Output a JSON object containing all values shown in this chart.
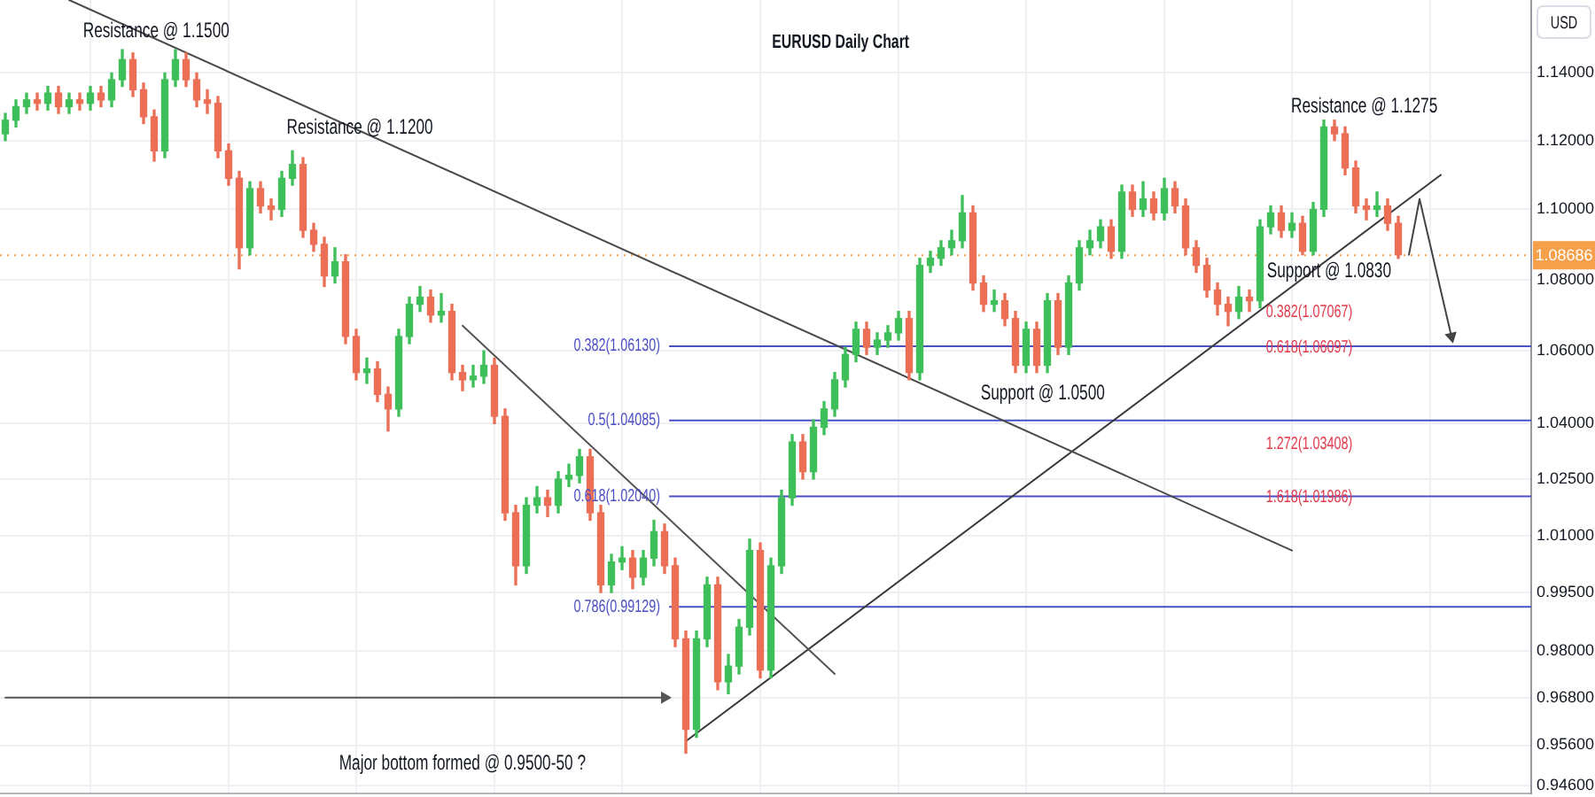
{
  "chart_data": {
    "type": "candlestick",
    "title": "EURUSD Daily Chart",
    "ylabel": "USD",
    "categories": [
      null,
      null,
      null,
      null,
      null,
      null,
      null,
      null,
      null,
      null,
      null,
      null,
      null,
      null,
      null,
      null,
      null,
      null,
      null,
      null,
      null,
      null,
      null,
      null,
      null,
      null,
      null,
      null,
      null,
      null,
      null,
      null,
      null,
      null,
      null,
      null,
      null,
      null,
      null,
      null,
      null,
      null,
      null,
      null,
      null,
      null,
      null,
      null,
      null,
      null,
      null,
      null,
      null,
      null,
      null,
      null,
      null,
      null,
      null,
      null,
      null,
      null,
      null,
      null,
      null,
      null,
      null,
      null,
      null,
      null,
      null,
      null,
      null,
      null,
      null,
      null,
      null,
      null,
      null,
      null,
      null,
      null,
      null,
      null,
      null,
      null,
      null,
      null,
      null,
      null,
      null,
      null,
      null,
      null,
      null,
      null,
      null,
      null,
      null,
      null,
      null,
      null,
      null,
      null,
      null,
      null,
      null,
      null,
      null,
      null,
      null,
      null,
      null,
      null,
      null,
      null,
      null,
      null,
      null,
      null,
      null,
      null,
      null,
      null,
      null,
      null,
      null,
      null,
      null,
      null,
      null,
      null,
      null,
      null,
      null,
      null,
      null,
      null,
      null,
      null,
      null,
      null,
      null,
      null
    ],
    "ohlc": [
      [
        1.122,
        1.128,
        1.12,
        1.126
      ],
      [
        1.126,
        1.132,
        1.124,
        1.13
      ],
      [
        1.13,
        1.134,
        1.128,
        1.132
      ],
      [
        1.132,
        1.134,
        1.129,
        1.131
      ],
      [
        1.131,
        1.136,
        1.129,
        1.134
      ],
      [
        1.134,
        1.136,
        1.128,
        1.13
      ],
      [
        1.13,
        1.134,
        1.128,
        1.132
      ],
      [
        1.132,
        1.134,
        1.129,
        1.131
      ],
      [
        1.131,
        1.136,
        1.129,
        1.134
      ],
      [
        1.134,
        1.136,
        1.13,
        1.132
      ],
      [
        1.132,
        1.14,
        1.13,
        1.138
      ],
      [
        1.138,
        1.147,
        1.136,
        1.144
      ],
      [
        1.144,
        1.146,
        1.133,
        1.135
      ],
      [
        1.135,
        1.137,
        1.125,
        1.127
      ],
      [
        1.127,
        1.129,
        1.114,
        1.117
      ],
      [
        1.117,
        1.14,
        1.115,
        1.138
      ],
      [
        1.138,
        1.147,
        1.136,
        1.144
      ],
      [
        1.144,
        1.146,
        1.136,
        1.138
      ],
      [
        1.138,
        1.14,
        1.13,
        1.132
      ],
      [
        1.132,
        1.135,
        1.128,
        1.131
      ],
      [
        1.131,
        1.133,
        1.115,
        1.117
      ],
      [
        1.117,
        1.119,
        1.107,
        1.109
      ],
      [
        1.109,
        1.111,
        1.083,
        1.089
      ],
      [
        1.089,
        1.108,
        1.087,
        1.106
      ],
      [
        1.106,
        1.108,
        1.099,
        1.101
      ],
      [
        1.101,
        1.103,
        1.097,
        1.1
      ],
      [
        1.1,
        1.111,
        1.098,
        1.109
      ],
      [
        1.109,
        1.117,
        1.107,
        1.113
      ],
      [
        1.113,
        1.115,
        1.092,
        1.094
      ],
      [
        1.094,
        1.096,
        1.088,
        1.09
      ],
      [
        1.09,
        1.092,
        1.078,
        1.081
      ],
      [
        1.081,
        1.089,
        1.079,
        1.085
      ],
      [
        1.085,
        1.087,
        1.062,
        1.064
      ],
      [
        1.064,
        1.066,
        1.052,
        1.054
      ],
      [
        1.054,
        1.058,
        1.051,
        1.055
      ],
      [
        1.055,
        1.057,
        1.046,
        1.048
      ],
      [
        1.048,
        1.05,
        1.038,
        1.044
      ],
      [
        1.044,
        1.066,
        1.042,
        1.064
      ],
      [
        1.064,
        1.075,
        1.062,
        1.073
      ],
      [
        1.073,
        1.078,
        1.071,
        1.075
      ],
      [
        1.075,
        1.077,
        1.068,
        1.07
      ],
      [
        1.07,
        1.076,
        1.068,
        1.071
      ],
      [
        1.071,
        1.073,
        1.052,
        1.054
      ],
      [
        1.054,
        1.056,
        1.049,
        1.052
      ],
      [
        1.052,
        1.056,
        1.05,
        1.053
      ],
      [
        1.053,
        1.06,
        1.051,
        1.056
      ],
      [
        1.056,
        1.058,
        1.04,
        1.042
      ],
      [
        1.042,
        1.044,
        1.014,
        1.016
      ],
      [
        1.016,
        1.018,
        0.997,
        1.002
      ],
      [
        1.002,
        1.02,
        1.0,
        1.018
      ],
      [
        1.018,
        1.023,
        1.016,
        1.02
      ],
      [
        1.02,
        1.022,
        1.015,
        1.018
      ],
      [
        1.018,
        1.027,
        1.016,
        1.025
      ],
      [
        1.025,
        1.029,
        1.023,
        1.026
      ],
      [
        1.026,
        1.033,
        1.024,
        1.031
      ],
      [
        1.031,
        1.033,
        1.014,
        1.016
      ],
      [
        1.016,
        1.018,
        0.995,
        0.997
      ],
      [
        0.997,
        1.005,
        0.995,
        1.003
      ],
      [
        1.003,
        1.007,
        1.001,
        1.004
      ],
      [
        1.004,
        1.006,
        0.996,
        0.999
      ],
      [
        0.999,
        1.006,
        0.997,
        1.004
      ],
      [
        1.004,
        1.014,
        1.002,
        1.011
      ],
      [
        1.011,
        1.013,
        1.0,
        1.002
      ],
      [
        1.002,
        1.004,
        0.981,
        0.983
      ],
      [
        0.983,
        0.985,
        0.954,
        0.96
      ],
      [
        0.96,
        0.985,
        0.958,
        0.983
      ],
      [
        0.983,
        0.999,
        0.981,
        0.997
      ],
      [
        0.997,
        0.999,
        0.97,
        0.972
      ],
      [
        0.972,
        0.979,
        0.969,
        0.976
      ],
      [
        0.976,
        0.988,
        0.974,
        0.986
      ],
      [
        0.986,
        1.009,
        0.984,
        1.006
      ],
      [
        1.006,
        1.008,
        0.973,
        0.975
      ],
      [
        0.975,
        1.004,
        0.973,
        1.002
      ],
      [
        1.002,
        1.022,
        1.0,
        1.02
      ],
      [
        1.02,
        1.037,
        1.018,
        1.035
      ],
      [
        1.035,
        1.037,
        1.025,
        1.027
      ],
      [
        1.027,
        1.041,
        1.025,
        1.039
      ],
      [
        1.039,
        1.046,
        1.037,
        1.044
      ],
      [
        1.044,
        1.054,
        1.042,
        1.052
      ],
      [
        1.052,
        1.061,
        1.05,
        1.059
      ],
      [
        1.059,
        1.068,
        1.057,
        1.066
      ],
      [
        1.066,
        1.068,
        1.059,
        1.061
      ],
      [
        1.061,
        1.065,
        1.059,
        1.063
      ],
      [
        1.063,
        1.067,
        1.061,
        1.065
      ],
      [
        1.065,
        1.071,
        1.063,
        1.069
      ],
      [
        1.069,
        1.071,
        1.052,
        1.054
      ],
      [
        1.054,
        1.086,
        1.052,
        1.084
      ],
      [
        1.084,
        1.088,
        1.082,
        1.086
      ],
      [
        1.086,
        1.091,
        1.084,
        1.089
      ],
      [
        1.089,
        1.094,
        1.087,
        1.091
      ],
      [
        1.091,
        1.104,
        1.089,
        1.099
      ],
      [
        1.099,
        1.101,
        1.077,
        1.079
      ],
      [
        1.079,
        1.081,
        1.071,
        1.073
      ],
      [
        1.073,
        1.077,
        1.071,
        1.074
      ],
      [
        1.074,
        1.076,
        1.067,
        1.069
      ],
      [
        1.069,
        1.071,
        1.054,
        1.056
      ],
      [
        1.056,
        1.068,
        1.054,
        1.066
      ],
      [
        1.066,
        1.068,
        1.054,
        1.056
      ],
      [
        1.056,
        1.076,
        1.054,
        1.074
      ],
      [
        1.074,
        1.076,
        1.059,
        1.061
      ],
      [
        1.061,
        1.081,
        1.059,
        1.079
      ],
      [
        1.079,
        1.091,
        1.077,
        1.089
      ],
      [
        1.089,
        1.094,
        1.087,
        1.091
      ],
      [
        1.091,
        1.097,
        1.089,
        1.095
      ],
      [
        1.095,
        1.097,
        1.086,
        1.088
      ],
      [
        1.088,
        1.107,
        1.086,
        1.105
      ],
      [
        1.105,
        1.107,
        1.098,
        1.1
      ],
      [
        1.1,
        1.108,
        1.098,
        1.103
      ],
      [
        1.103,
        1.105,
        1.097,
        1.099
      ],
      [
        1.099,
        1.109,
        1.097,
        1.106
      ],
      [
        1.106,
        1.108,
        1.099,
        1.101
      ],
      [
        1.101,
        1.103,
        1.087,
        1.089
      ],
      [
        1.089,
        1.091,
        1.082,
        1.084
      ],
      [
        1.084,
        1.086,
        1.075,
        1.077
      ],
      [
        1.077,
        1.079,
        1.07,
        1.073
      ],
      [
        1.073,
        1.075,
        1.067,
        1.071
      ],
      [
        1.071,
        1.078,
        1.069,
        1.075
      ],
      [
        1.075,
        1.077,
        1.071,
        1.074
      ],
      [
        1.074,
        1.097,
        1.072,
        1.095
      ],
      [
        1.095,
        1.101,
        1.093,
        1.099
      ],
      [
        1.099,
        1.101,
        1.092,
        1.094
      ],
      [
        1.094,
        1.099,
        1.092,
        1.096
      ],
      [
        1.096,
        1.098,
        1.087,
        1.088
      ],
      [
        1.088,
        1.102,
        1.087,
        1.1
      ],
      [
        1.1,
        1.126,
        1.098,
        1.124
      ],
      [
        1.124,
        1.126,
        1.12,
        1.122
      ],
      [
        1.122,
        1.124,
        1.11,
        1.112
      ],
      [
        1.112,
        1.114,
        1.099,
        1.101
      ],
      [
        1.101,
        1.103,
        1.097,
        1.1
      ],
      [
        1.1,
        1.105,
        1.098,
        1.101
      ],
      [
        1.101,
        1.103,
        1.094,
        1.096
      ],
      [
        1.096,
        1.098,
        1.086,
        1.087
      ],
      null,
      null,
      null,
      null,
      null,
      null,
      null,
      null,
      null,
      null,
      null,
      null
    ],
    "colors": [
      "#3fbf5a",
      "#3fbf5a",
      "#3fbf5a",
      "#ea6f56",
      "#3fbf5a",
      "#ea6f56",
      "#3fbf5a",
      "#ea6f56",
      "#3fbf5a",
      "#ea6f56",
      "#3fbf5a",
      "#3fbf5a",
      "#ea6f56",
      "#ea6f56",
      "#ea6f56",
      "#3fbf5a",
      "#3fbf5a",
      "#ea6f56",
      "#ea6f56",
      "#ea6f56",
      "#ea6f56",
      "#ea6f56",
      "#ea6f56",
      "#3fbf5a",
      "#ea6f56",
      "#ea6f56",
      "#3fbf5a",
      "#3fbf5a",
      "#ea6f56",
      "#ea6f56",
      "#ea6f56",
      "#3fbf5a",
      "#ea6f56",
      "#ea6f56",
      "#3fbf5a",
      "#ea6f56",
      "#ea6f56",
      "#3fbf5a",
      "#3fbf5a",
      "#3fbf5a",
      "#ea6f56",
      "#3fbf5a",
      "#ea6f56",
      "#ea6f56",
      "#3fbf5a",
      "#3fbf5a",
      "#ea6f56",
      "#ea6f56",
      "#ea6f56",
      "#3fbf5a",
      "#3fbf5a",
      "#ea6f56",
      "#3fbf5a",
      "#3fbf5a",
      "#3fbf5a",
      "#ea6f56",
      "#ea6f56",
      "#3fbf5a",
      "#3fbf5a",
      "#ea6f56",
      "#3fbf5a",
      "#3fbf5a",
      "#ea6f56",
      "#ea6f56",
      "#ea6f56",
      "#3fbf5a",
      "#3fbf5a",
      "#ea6f56",
      "#3fbf5a",
      "#3fbf5a",
      "#3fbf5a",
      "#ea6f56",
      "#3fbf5a",
      "#3fbf5a",
      "#3fbf5a",
      "#ea6f56",
      "#3fbf5a",
      "#3fbf5a",
      "#3fbf5a",
      "#3fbf5a",
      "#3fbf5a",
      "#ea6f56",
      "#3fbf5a",
      "#3fbf5a",
      "#3fbf5a",
      "#ea6f56",
      "#3fbf5a",
      "#3fbf5a",
      "#3fbf5a",
      "#3fbf5a",
      "#3fbf5a",
      "#ea6f56",
      "#ea6f56",
      "#3fbf5a",
      "#ea6f56",
      "#ea6f56",
      "#3fbf5a",
      "#ea6f56",
      "#3fbf5a",
      "#ea6f56",
      "#3fbf5a",
      "#3fbf5a",
      "#3fbf5a",
      "#3fbf5a",
      "#ea6f56",
      "#3fbf5a",
      "#ea6f56",
      "#3fbf5a",
      "#ea6f56",
      "#3fbf5a",
      "#ea6f56",
      "#ea6f56",
      "#ea6f56",
      "#ea6f56",
      "#ea6f56",
      "#ea6f56",
      "#3fbf5a",
      "#ea6f56",
      "#3fbf5a",
      "#3fbf5a",
      "#ea6f56",
      "#3fbf5a",
      "#ea6f56",
      "#3fbf5a",
      "#3fbf5a",
      "#ea6f56",
      "#ea6f56",
      "#ea6f56",
      "#ea6f56",
      "#3fbf5a",
      "#ea6f56",
      "#ea6f56",
      null,
      null,
      null,
      null,
      null,
      null,
      null,
      null,
      null,
      null,
      null,
      null
    ],
    "series": [
      {
        "type": "line",
        "color": "#4a4a4a",
        "values": [
          null,
          null,
          null,
          null,
          null,
          null,
          1.162,
          null,
          null,
          null,
          null,
          null,
          null,
          null,
          null,
          null,
          null,
          null,
          null,
          null,
          null,
          null,
          null,
          null,
          null,
          null,
          null,
          null,
          null,
          null,
          null,
          null,
          null,
          null,
          null,
          null,
          null,
          null,
          null,
          null,
          null,
          null,
          null,
          null,
          null,
          null,
          null,
          null,
          null,
          null,
          null,
          null,
          null,
          null,
          null,
          null,
          null,
          null,
          null,
          null,
          null,
          null,
          null,
          null,
          null,
          null,
          null,
          null,
          null,
          null,
          null,
          null,
          null,
          null,
          null,
          null,
          null,
          null,
          null,
          null,
          null,
          null,
          null,
          null,
          null,
          null,
          null,
          null,
          null,
          null,
          null,
          null,
          null,
          null,
          null,
          null,
          null,
          null,
          null,
          null,
          null,
          null,
          null,
          null,
          null,
          null,
          null,
          null,
          null,
          null,
          null,
          null,
          null,
          null,
          null,
          null,
          null,
          null,
          null,
          null,
          null,
          1.006,
          null,
          null,
          null,
          null,
          null,
          null,
          null,
          null,
          null,
          null,
          null,
          null,
          null,
          null,
          null,
          null,
          null,
          null,
          null,
          null,
          null,
          null
        ]
      },
      {
        "type": "line",
        "color": "#555555",
        "values": [
          null,
          null,
          null,
          null,
          null,
          null,
          null,
          null,
          null,
          null,
          null,
          null,
          null,
          null,
          null,
          null,
          null,
          null,
          null,
          null,
          null,
          null,
          null,
          null,
          null,
          null,
          null,
          null,
          null,
          null,
          null,
          null,
          null,
          null,
          null,
          null,
          null,
          null,
          null,
          null,
          null,
          null,
          null,
          1.067,
          null,
          null,
          null,
          null,
          null,
          null,
          null,
          null,
          null,
          null,
          null,
          null,
          null,
          null,
          null,
          null,
          null,
          null,
          null,
          null,
          null,
          null,
          null,
          null,
          null,
          null,
          null,
          null,
          null,
          null,
          null,
          null,
          null,
          null,
          0.974,
          null,
          null,
          null,
          null,
          null,
          null,
          null,
          null,
          null,
          null,
          null,
          null,
          null,
          null,
          null,
          null,
          null,
          null,
          null,
          null,
          null,
          null,
          null,
          null,
          null,
          null,
          null,
          null,
          null,
          null,
          null,
          null,
          null,
          null,
          null,
          null,
          null,
          null,
          null,
          null,
          null,
          null,
          null,
          null,
          null,
          null,
          null,
          null,
          null,
          null,
          null,
          null,
          null,
          null,
          null,
          null,
          null,
          null,
          null,
          null,
          null,
          null,
          null,
          null,
          null
        ]
      },
      {
        "type": "line",
        "color": "#3a3a3a",
        "values": [
          null,
          null,
          null,
          null,
          null,
          null,
          null,
          null,
          null,
          null,
          null,
          null,
          null,
          null,
          null,
          null,
          null,
          null,
          null,
          null,
          null,
          null,
          null,
          null,
          null,
          null,
          null,
          null,
          null,
          null,
          null,
          null,
          null,
          null,
          null,
          null,
          null,
          null,
          null,
          null,
          null,
          null,
          null,
          null,
          null,
          null,
          null,
          null,
          null,
          null,
          null,
          null,
          null,
          null,
          null,
          null,
          null,
          null,
          null,
          null,
          null,
          null,
          null,
          null,
          0.957,
          null,
          null,
          null,
          null,
          null,
          null,
          null,
          null,
          null,
          null,
          null,
          null,
          null,
          null,
          null,
          null,
          null,
          null,
          null,
          null,
          null,
          null,
          null,
          null,
          null,
          null,
          null,
          null,
          null,
          null,
          null,
          null,
          null,
          null,
          null,
          null,
          null,
          null,
          null,
          null,
          null,
          null,
          null,
          null,
          null,
          null,
          null,
          null,
          null,
          null,
          null,
          null,
          null,
          null,
          null,
          null,
          null,
          null,
          null,
          null,
          null,
          null,
          null,
          null,
          null,
          null,
          null,
          null,
          null,
          null,
          1.11,
          null,
          null,
          null,
          null,
          null,
          null,
          null,
          null
        ]
      },
      {
        "type": "line",
        "color": "#555555",
        "values": [
          0.968,
          null,
          null,
          null,
          null,
          null,
          null,
          null,
          null,
          null,
          null,
          null,
          null,
          null,
          null,
          null,
          null,
          null,
          null,
          null,
          null,
          null,
          null,
          null,
          null,
          null,
          null,
          null,
          null,
          null,
          null,
          null,
          null,
          null,
          null,
          null,
          null,
          null,
          null,
          null,
          null,
          null,
          null,
          null,
          null,
          null,
          null,
          null,
          null,
          null,
          null,
          null,
          null,
          null,
          null,
          null,
          null,
          null,
          null,
          null,
          null,
          null,
          0.968,
          null,
          null,
          null,
          null,
          null,
          null,
          null,
          null,
          null,
          null,
          null,
          null,
          null,
          null,
          null,
          null,
          null,
          null,
          null,
          null,
          null,
          null,
          null,
          null,
          null,
          null,
          null,
          null,
          null,
          null,
          null,
          null,
          null,
          null,
          null,
          null,
          null,
          null,
          null,
          null,
          null,
          null,
          null,
          null,
          null,
          null,
          null,
          null,
          null,
          null,
          null,
          null,
          null,
          null,
          null,
          null,
          null,
          null,
          null,
          null,
          null,
          null,
          null,
          null,
          null,
          null,
          null,
          null,
          null,
          null,
          null,
          null,
          null,
          null,
          null,
          null,
          null,
          null,
          null,
          null,
          null
        ]
      },
      {
        "type": "line",
        "color": "#444444",
        "values": [
          null,
          null,
          null,
          null,
          null,
          null,
          null,
          null,
          null,
          null,
          null,
          null,
          null,
          null,
          null,
          null,
          null,
          null,
          null,
          null,
          null,
          null,
          null,
          null,
          null,
          null,
          null,
          null,
          null,
          null,
          null,
          null,
          null,
          null,
          null,
          null,
          null,
          null,
          null,
          null,
          null,
          null,
          null,
          null,
          null,
          null,
          null,
          null,
          null,
          null,
          null,
          null,
          null,
          null,
          null,
          null,
          null,
          null,
          null,
          null,
          null,
          null,
          null,
          null,
          null,
          null,
          null,
          null,
          null,
          null,
          null,
          null,
          null,
          null,
          null,
          null,
          null,
          null,
          null,
          null,
          null,
          null,
          null,
          null,
          null,
          null,
          null,
          null,
          null,
          null,
          null,
          null,
          null,
          null,
          null,
          null,
          null,
          null,
          null,
          null,
          null,
          null,
          null,
          null,
          null,
          null,
          null,
          null,
          null,
          null,
          null,
          null,
          null,
          null,
          null,
          null,
          null,
          null,
          null,
          null,
          null,
          null,
          null,
          null,
          null,
          null,
          null,
          null,
          null,
          null,
          null,
          null,
          1.087,
          1.103,
          null,
          null,
          1.064,
          null,
          null,
          null,
          null,
          null,
          null,
          null
        ]
      }
    ],
    "log": "y",
    "ylim": [
      0.944,
      1.162
    ],
    "yticks": [
      {
        "value": 0.946,
        "label": "0.94600"
      },
      {
        "value": 0.956,
        "label": "0.95600"
      },
      {
        "value": 0.968,
        "label": "0.96800"
      },
      {
        "value": 0.98,
        "label": "0.98000"
      },
      {
        "value": 0.995,
        "label": "0.99500"
      },
      {
        "value": 1.01,
        "label": "1.01000"
      },
      {
        "value": 1.025,
        "label": "1.02500"
      },
      {
        "value": 1.04,
        "label": "1.04000"
      },
      {
        "value": 1.06,
        "label": "1.06000"
      },
      {
        "value": 1.08,
        "label": "1.08000"
      },
      {
        "value": 1.1,
        "label": "1.10000"
      },
      {
        "value": 1.12,
        "label": "1.12000"
      },
      {
        "value": 1.14,
        "label": "1.14000"
      }
    ],
    "grid": true,
    "legend": false,
    "tick_labels": "y",
    "ref_lines": [
      {
        "axis": "y",
        "value": 1.08686,
        "label": "1.08686",
        "color": "#f7a04b",
        "line_style": "dotted"
      },
      {
        "axis": "y",
        "value": 1.0613,
        "label": "0.382(1.06130)",
        "color": "#4b4fc4"
      },
      {
        "axis": "y",
        "value": 1.04085,
        "label": "0.5(1.04085)",
        "color": "#4b4fc4"
      },
      {
        "axis": "y",
        "value": 1.0204,
        "label": "0.618(1.02040)",
        "color": "#4b4fc4"
      },
      {
        "axis": "y",
        "value": 0.99129,
        "label": "0.786(0.99129)",
        "color": "#4b4fc4"
      }
    ],
    "annotations": [
      "Resistance @ 1.1500",
      "Resistance @ 1.1200",
      "Support @ 1.0500",
      "Support @ 1.0830",
      "Resistance @ 1.1275",
      "Major bottom formed @ 0.9500-50 ?",
      "0.382(1.07067)",
      "0.618(1.06097)",
      "1.272(1.03408)",
      "1.618(1.01986)"
    ]
  }
}
